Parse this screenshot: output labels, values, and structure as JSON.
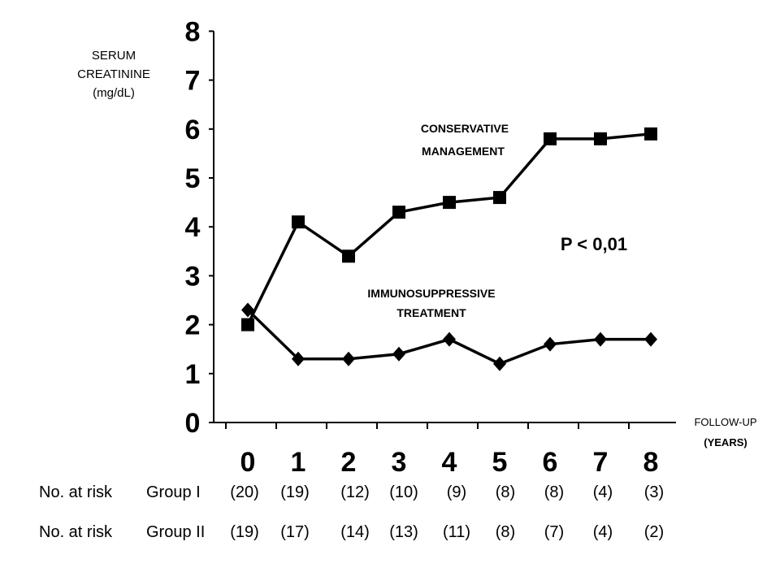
{
  "chart_data": {
    "type": "line",
    "y_label_lines": [
      "SERUM",
      "CREATININE",
      "(mg/dL)"
    ],
    "x_label_lines": [
      "FOLLOW-UP",
      "(YEARS)"
    ],
    "ylim": [
      0,
      8
    ],
    "y_ticks": [
      "0",
      "1",
      "2",
      "3",
      "4",
      "5",
      "6",
      "7",
      "8"
    ],
    "x": [
      0,
      1,
      2,
      3,
      4,
      5,
      6,
      7,
      8
    ],
    "x_ticks": [
      "0",
      "1",
      "2",
      "3",
      "4",
      "5",
      "6",
      "7",
      "8"
    ],
    "grid": false,
    "series": [
      {
        "name": "CONSERVATIVE MANAGEMENT",
        "marker": "square",
        "values": [
          2.0,
          4.1,
          3.4,
          4.3,
          4.5,
          4.6,
          5.8,
          5.8,
          5.9
        ]
      },
      {
        "name": "IMMUNOSUPPRESSIVE TREATMENT",
        "marker": "diamond",
        "values": [
          2.3,
          1.3,
          1.3,
          1.4,
          1.7,
          1.2,
          1.6,
          1.7,
          1.7
        ]
      }
    ],
    "annotations": {
      "conservative": [
        "CONSERVATIVE",
        "MANAGEMENT"
      ],
      "immuno": [
        "IMMUNOSUPPRESSIVE",
        "TREATMENT"
      ],
      "pvalue": "P < 0,01"
    },
    "at_risk": [
      {
        "prefix": "No. at risk",
        "group": "Group I",
        "counts": [
          "(20)",
          "(19)",
          "(12)",
          "(10)",
          "(9)",
          "(8)",
          "(8)",
          "(4)",
          "(3)"
        ]
      },
      {
        "prefix": "No. at risk",
        "group": "Group II",
        "counts": [
          "(19)",
          "(17)",
          "(14)",
          "(13)",
          "(11)",
          "(8)",
          "(7)",
          "(4)",
          "(2)"
        ]
      }
    ]
  }
}
